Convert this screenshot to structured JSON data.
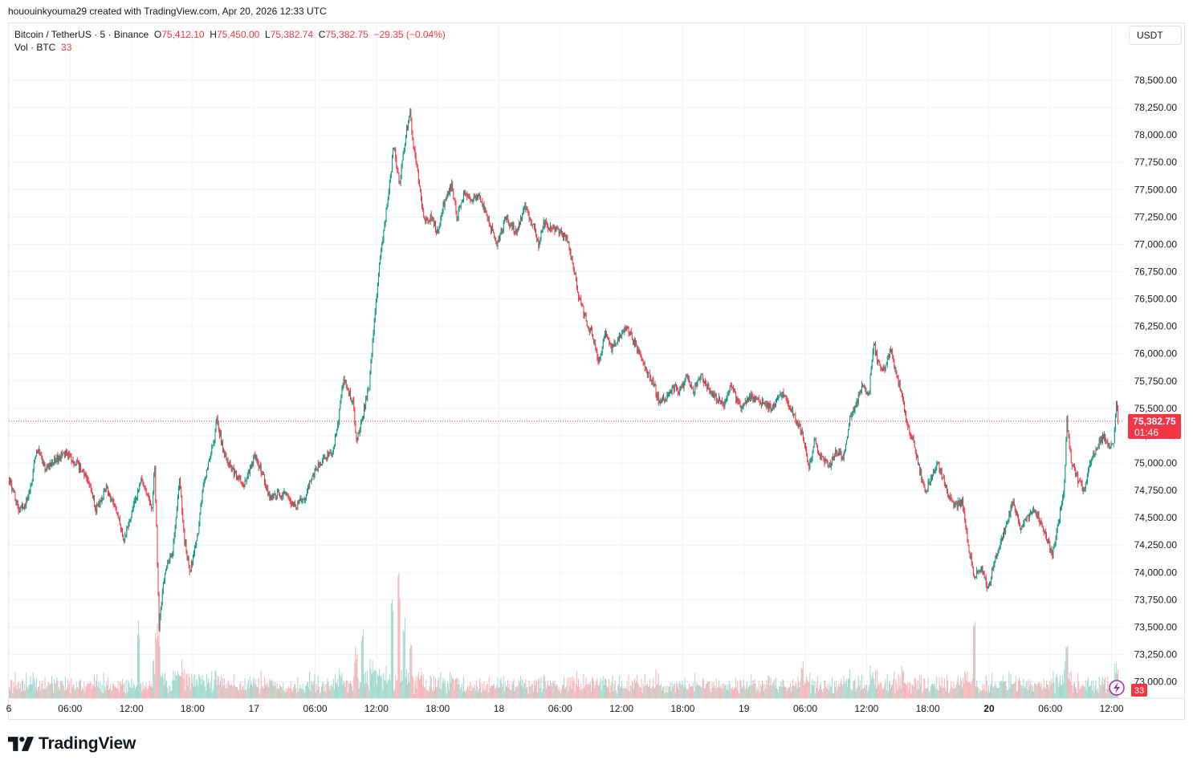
{
  "credit": "hououinkyouma29 created with TradingView.com, Apr 20, 2026 12:33 UTC",
  "legend": {
    "symbol": "Bitcoin / TetherUS · 5 · Binance",
    "o_label": "O",
    "o_value": "75,412.10",
    "h_label": "H",
    "h_value": "75,450.00",
    "l_label": "L",
    "l_value": "75,382.74",
    "c_label": "C",
    "c_value": "75,382.75",
    "change": "−29.35 (−0.04%)",
    "vol_label": "Vol · BTC",
    "vol_value": "33"
  },
  "currency": "USDT",
  "price_badge": {
    "price": "75,382.75",
    "countdown": "01:46"
  },
  "volume_badge": "33",
  "logo_text": "TradingView",
  "colors": {
    "up": "#089981",
    "down": "#f23645",
    "up_volume": "#9fd8cd",
    "down_volume": "#f7b2b6",
    "grid": "#f0f3fa",
    "text": "#131722"
  },
  "chart_data": {
    "type": "candlestick",
    "timeframe": "5",
    "y_axis": {
      "ylim": [
        72850,
        78720
      ],
      "ticks": [
        "73,000.00",
        "73,250.00",
        "73,500.00",
        "73,750.00",
        "74,000.00",
        "74,250.00",
        "74,500.00",
        "74,750.00",
        "75,000.00",
        "75,250.00",
        "75,500.00",
        "75,750.00",
        "76,000.00",
        "76,250.00",
        "76,500.00",
        "76,750.00",
        "77,000.00",
        "77,250.00",
        "77,500.00",
        "77,750.00",
        "78,000.00",
        "78,250.00",
        "78,500.00"
      ],
      "tick_values": [
        73000,
        73250,
        73500,
        73750,
        74000,
        74250,
        74500,
        74750,
        75000,
        75250,
        75500,
        75750,
        76000,
        76250,
        76500,
        76750,
        77000,
        77250,
        77500,
        77750,
        78000,
        78250,
        78500
      ]
    },
    "x_axis": {
      "xlim": [
        "2026-04-16 00:00",
        "2026-04-20 12:35"
      ],
      "ticks": [
        {
          "label": "6",
          "time": "2026-04-16 00:00",
          "bold": false
        },
        {
          "label": "06:00",
          "time": "2026-04-16 06:00",
          "bold": false
        },
        {
          "label": "12:00",
          "time": "2026-04-16 12:00",
          "bold": false
        },
        {
          "label": "18:00",
          "time": "2026-04-16 18:00",
          "bold": false
        },
        {
          "label": "17",
          "time": "2026-04-17 00:00",
          "bold": false
        },
        {
          "label": "06:00",
          "time": "2026-04-17 06:00",
          "bold": false
        },
        {
          "label": "12:00",
          "time": "2026-04-17 12:00",
          "bold": false
        },
        {
          "label": "18:00",
          "time": "2026-04-17 18:00",
          "bold": false
        },
        {
          "label": "18",
          "time": "2026-04-18 00:00",
          "bold": false
        },
        {
          "label": "06:00",
          "time": "2026-04-18 06:00",
          "bold": false
        },
        {
          "label": "12:00",
          "time": "2026-04-18 12:00",
          "bold": false
        },
        {
          "label": "18:00",
          "time": "2026-04-18 18:00",
          "bold": false
        },
        {
          "label": "19",
          "time": "2026-04-19 00:00",
          "bold": false
        },
        {
          "label": "06:00",
          "time": "2026-04-19 06:00",
          "bold": false
        },
        {
          "label": "12:00",
          "time": "2026-04-19 12:00",
          "bold": false
        },
        {
          "label": "18:00",
          "time": "2026-04-19 18:00",
          "bold": false
        },
        {
          "label": "20",
          "time": "2026-04-20 00:00",
          "bold": true
        },
        {
          "label": "06:00",
          "time": "2026-04-20 06:00",
          "bold": false
        },
        {
          "label": "12:00",
          "time": "2026-04-20 12:00",
          "bold": false
        }
      ]
    },
    "last_price": 75382.75,
    "grid": true,
    "price_path": [
      [
        "2026-04-16 00:00",
        74850
      ],
      [
        "2026-04-16 01:00",
        74560
      ],
      [
        "2026-04-16 02:00",
        74700
      ],
      [
        "2026-04-16 02:40",
        75150
      ],
      [
        "2026-04-16 03:30",
        74950
      ],
      [
        "2026-04-16 05:30",
        75100
      ],
      [
        "2026-04-16 07:30",
        74900
      ],
      [
        "2026-04-16 08:30",
        74580
      ],
      [
        "2026-04-16 09:30",
        74760
      ],
      [
        "2026-04-16 10:30",
        74560
      ],
      [
        "2026-04-16 11:15",
        74300
      ],
      [
        "2026-04-16 12:30",
        74700
      ],
      [
        "2026-04-16 13:00",
        74850
      ],
      [
        "2026-04-16 14:00",
        74600
      ],
      [
        "2026-04-16 14:15",
        74980
      ],
      [
        "2026-04-16 14:40",
        73500
      ],
      [
        "2026-04-16 15:10",
        73950
      ],
      [
        "2026-04-16 16:00",
        74200
      ],
      [
        "2026-04-16 16:40",
        74850
      ],
      [
        "2026-04-16 17:10",
        74300
      ],
      [
        "2026-04-16 17:40",
        74000
      ],
      [
        "2026-04-16 18:30",
        74350
      ],
      [
        "2026-04-16 19:00",
        74800
      ],
      [
        "2026-04-16 20:00",
        75200
      ],
      [
        "2026-04-16 20:20",
        75400
      ],
      [
        "2026-04-16 21:00",
        75100
      ],
      [
        "2026-04-16 22:00",
        74900
      ],
      [
        "2026-04-16 23:00",
        74820
      ],
      [
        "2026-04-17 00:00",
        75050
      ],
      [
        "2026-04-17 00:45",
        74920
      ],
      [
        "2026-04-17 01:30",
        74680
      ],
      [
        "2026-04-17 03:00",
        74720
      ],
      [
        "2026-04-17 04:00",
        74600
      ],
      [
        "2026-04-17 05:00",
        74700
      ],
      [
        "2026-04-17 05:45",
        74900
      ],
      [
        "2026-04-17 06:40",
        75030
      ],
      [
        "2026-04-17 07:40",
        75100
      ],
      [
        "2026-04-17 08:15",
        75400
      ],
      [
        "2026-04-17 08:45",
        75800
      ],
      [
        "2026-04-17 09:15",
        75650
      ],
      [
        "2026-04-17 09:40",
        75550
      ],
      [
        "2026-04-17 10:00",
        75200
      ],
      [
        "2026-04-17 10:30",
        75400
      ],
      [
        "2026-04-17 11:15",
        75700
      ],
      [
        "2026-04-17 11:45",
        76300
      ],
      [
        "2026-04-17 12:15",
        76800
      ],
      [
        "2026-04-17 12:40",
        77100
      ],
      [
        "2026-04-17 13:10",
        77500
      ],
      [
        "2026-04-17 13:40",
        77900
      ],
      [
        "2026-04-17 14:15",
        77550
      ],
      [
        "2026-04-17 14:50",
        78000
      ],
      [
        "2026-04-17 15:15",
        78200
      ],
      [
        "2026-04-17 15:35",
        77900
      ],
      [
        "2026-04-17 16:05",
        77600
      ],
      [
        "2026-04-17 16:40",
        77200
      ],
      [
        "2026-04-17 17:20",
        77250
      ],
      [
        "2026-04-17 18:00",
        77100
      ],
      [
        "2026-04-17 18:30",
        77350
      ],
      [
        "2026-04-17 19:20",
        77550
      ],
      [
        "2026-04-17 19:50",
        77250
      ],
      [
        "2026-04-17 20:30",
        77450
      ],
      [
        "2026-04-17 21:20",
        77400
      ],
      [
        "2026-04-17 22:00",
        77450
      ],
      [
        "2026-04-17 23:00",
        77200
      ],
      [
        "2026-04-17 23:45",
        77000
      ],
      [
        "2026-04-18 00:40",
        77250
      ],
      [
        "2026-04-18 01:40",
        77100
      ],
      [
        "2026-04-18 02:30",
        77350
      ],
      [
        "2026-04-18 03:20",
        77150
      ],
      [
        "2026-04-18 03:50",
        77000
      ],
      [
        "2026-04-18 04:20",
        77200
      ],
      [
        "2026-04-18 05:10",
        77150
      ],
      [
        "2026-04-18 06:00",
        77100
      ],
      [
        "2026-04-18 06:40",
        77050
      ],
      [
        "2026-04-18 07:20",
        76750
      ],
      [
        "2026-04-18 07:50",
        76500
      ],
      [
        "2026-04-18 08:30",
        76300
      ],
      [
        "2026-04-18 09:10",
        76150
      ],
      [
        "2026-04-18 09:45",
        75900
      ],
      [
        "2026-04-18 10:20",
        76200
      ],
      [
        "2026-04-18 11:00",
        76050
      ],
      [
        "2026-04-18 11:40",
        76150
      ],
      [
        "2026-04-18 12:20",
        76250
      ],
      [
        "2026-04-18 13:00",
        76150
      ],
      [
        "2026-04-18 13:40",
        76000
      ],
      [
        "2026-04-18 14:20",
        75850
      ],
      [
        "2026-04-18 15:00",
        75750
      ],
      [
        "2026-04-18 15:40",
        75550
      ],
      [
        "2026-04-18 16:20",
        75600
      ],
      [
        "2026-04-18 17:00",
        75700
      ],
      [
        "2026-04-18 17:40",
        75650
      ],
      [
        "2026-04-18 18:20",
        75780
      ],
      [
        "2026-04-18 19:00",
        75650
      ],
      [
        "2026-04-18 19:40",
        75800
      ],
      [
        "2026-04-18 20:20",
        75700
      ],
      [
        "2026-04-18 21:00",
        75620
      ],
      [
        "2026-04-18 22:00",
        75550
      ],
      [
        "2026-04-18 22:40",
        75700
      ],
      [
        "2026-04-18 23:40",
        75500
      ],
      [
        "2026-04-19 00:40",
        75600
      ],
      [
        "2026-04-19 01:40",
        75550
      ],
      [
        "2026-04-19 02:40",
        75500
      ],
      [
        "2026-04-19 03:40",
        75650
      ],
      [
        "2026-04-19 04:20",
        75550
      ],
      [
        "2026-04-19 05:00",
        75400
      ],
      [
        "2026-04-19 05:40",
        75250
      ],
      [
        "2026-04-19 06:20",
        74950
      ],
      [
        "2026-04-19 06:50",
        75200
      ],
      [
        "2026-04-19 07:30",
        75050
      ],
      [
        "2026-04-19 08:20",
        74980
      ],
      [
        "2026-04-19 09:00",
        75100
      ],
      [
        "2026-04-19 09:40",
        75050
      ],
      [
        "2026-04-19 10:20",
        75400
      ],
      [
        "2026-04-19 11:00",
        75550
      ],
      [
        "2026-04-19 11:30",
        75700
      ],
      [
        "2026-04-19 12:10",
        75600
      ],
      [
        "2026-04-19 12:40",
        76100
      ],
      [
        "2026-04-19 13:00",
        75950
      ],
      [
        "2026-04-19 13:40",
        75850
      ],
      [
        "2026-04-19 14:20",
        76050
      ],
      [
        "2026-04-19 14:50",
        75800
      ],
      [
        "2026-04-19 15:30",
        75600
      ],
      [
        "2026-04-19 15:50",
        75400
      ],
      [
        "2026-04-19 16:30",
        75200
      ],
      [
        "2026-04-19 17:00",
        75000
      ],
      [
        "2026-04-19 17:40",
        74750
      ],
      [
        "2026-04-19 18:20",
        74850
      ],
      [
        "2026-04-19 18:50",
        75000
      ],
      [
        "2026-04-19 19:20",
        74900
      ],
      [
        "2026-04-19 20:00",
        74700
      ],
      [
        "2026-04-19 20:40",
        74600
      ],
      [
        "2026-04-19 21:20",
        74650
      ],
      [
        "2026-04-19 22:00",
        74200
      ],
      [
        "2026-04-19 22:30",
        73950
      ],
      [
        "2026-04-19 23:10",
        74050
      ],
      [
        "2026-04-19 23:50",
        73850
      ],
      [
        "2026-04-20 00:30",
        74100
      ],
      [
        "2026-04-20 01:10",
        74300
      ],
      [
        "2026-04-20 01:50",
        74500
      ],
      [
        "2026-04-20 02:20",
        74650
      ],
      [
        "2026-04-20 03:00",
        74400
      ],
      [
        "2026-04-20 03:40",
        74500
      ],
      [
        "2026-04-20 04:20",
        74600
      ],
      [
        "2026-04-20 05:00",
        74450
      ],
      [
        "2026-04-20 05:40",
        74300
      ],
      [
        "2026-04-20 06:10",
        74150
      ],
      [
        "2026-04-20 06:50",
        74500
      ],
      [
        "2026-04-20 07:20",
        74800
      ],
      [
        "2026-04-20 07:35",
        75400
      ],
      [
        "2026-04-20 08:00",
        75000
      ],
      [
        "2026-04-20 08:40",
        74850
      ],
      [
        "2026-04-20 09:20",
        74750
      ],
      [
        "2026-04-20 09:50",
        75000
      ],
      [
        "2026-04-20 10:30",
        75150
      ],
      [
        "2026-04-20 11:10",
        75250
      ],
      [
        "2026-04-20 11:40",
        75150
      ],
      [
        "2026-04-20 12:10",
        75200
      ],
      [
        "2026-04-20 12:25",
        75550
      ],
      [
        "2026-04-20 12:35",
        75382.75
      ]
    ],
    "volume_spikes": [
      [
        "2026-04-16 12:40",
        0.45
      ],
      [
        "2026-04-16 14:40",
        0.3
      ],
      [
        "2026-04-17 10:00",
        0.3
      ],
      [
        "2026-04-17 10:35",
        0.45
      ],
      [
        "2026-04-17 13:30",
        0.6
      ],
      [
        "2026-04-17 14:10",
        0.75
      ],
      [
        "2026-04-17 14:40",
        0.5
      ],
      [
        "2026-04-17 15:20",
        0.4
      ],
      [
        "2026-04-19 05:40",
        0.22
      ],
      [
        "2026-04-19 15:30",
        0.2
      ],
      [
        "2026-04-19 22:30",
        0.45
      ],
      [
        "2026-04-20 07:35",
        0.32
      ]
    ]
  }
}
